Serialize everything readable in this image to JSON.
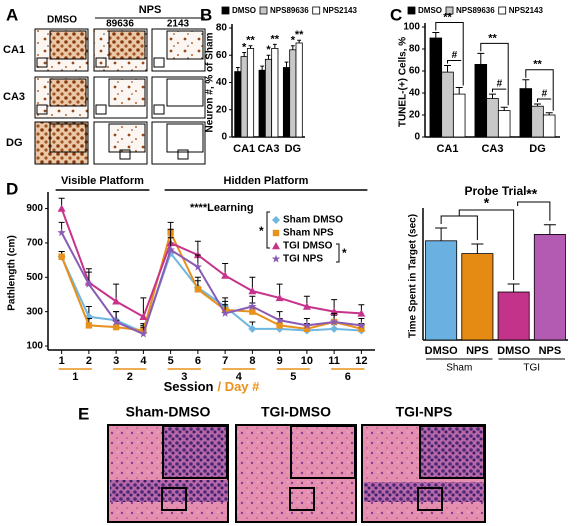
{
  "figure": {
    "panel_labels": [
      "A",
      "B",
      "C",
      "D",
      "E"
    ],
    "panel_a": {
      "columns": [
        "DMSO",
        "89636",
        "2143"
      ],
      "group": "NPS",
      "rows": [
        "CA1",
        "CA3",
        "DG"
      ]
    },
    "panel_e": {
      "labels": [
        "Sham-DMSO",
        "TGI-DMSO",
        "TGI-NPS"
      ]
    }
  },
  "chart_data": [
    {
      "type": "bar",
      "y_label": "Neuron #, % of Sham",
      "categories": [
        "CA1",
        "CA3",
        "DG"
      ],
      "series": [
        {
          "name": "DMSO",
          "color": "#000000",
          "values": [
            48,
            49,
            51
          ],
          "errors": [
            3,
            3,
            4
          ],
          "annotations": [
            null,
            null,
            null
          ]
        },
        {
          "name": "NPS89636",
          "color": "#c8c8c8",
          "values": [
            59,
            57,
            64
          ],
          "errors": [
            3,
            3,
            3
          ],
          "annotations": [
            "*",
            "*",
            "*"
          ]
        },
        {
          "name": "NPS2143",
          "color": "#ffffff",
          "values": [
            65,
            65,
            69
          ],
          "errors": [
            2,
            3,
            2
          ],
          "annotations": [
            "**",
            "**",
            "**"
          ]
        }
      ],
      "ylim": [
        0,
        80
      ],
      "yticks": [
        0,
        20,
        40,
        60,
        80
      ]
    },
    {
      "type": "bar",
      "y_label": "TUNEL-(+) Cells, %",
      "categories": [
        "CA1",
        "CA3",
        "DG"
      ],
      "series": [
        {
          "name": "DMSO",
          "color": "#000000",
          "values": [
            90,
            66,
            44
          ],
          "errors": [
            5,
            10,
            8
          ]
        },
        {
          "name": "NPS89636",
          "color": "#c8c8c8",
          "values": [
            59,
            35,
            28
          ],
          "errors": [
            6,
            4,
            2
          ]
        },
        {
          "name": "NPS2143",
          "color": "#ffffff",
          "values": [
            39,
            24,
            20
          ],
          "errors": [
            6,
            3,
            2
          ]
        }
      ],
      "significance": [
        [
          "**",
          "#"
        ],
        [
          "**",
          "#"
        ],
        [
          "**",
          "#"
        ]
      ],
      "ylim": [
        0,
        100
      ],
      "yticks": [
        0,
        20,
        40,
        60,
        80,
        100
      ]
    },
    {
      "type": "line",
      "y_label": "Pathlength (cm)",
      "x_label": "Session",
      "x_label_secondary": "/ Day #",
      "phases": [
        "Visible Platform",
        "Hidden Platform"
      ],
      "day_labels": [
        "1",
        "2",
        "3",
        "4",
        "5",
        "6"
      ],
      "annotations": [
        "****Learning",
        "*",
        "*"
      ],
      "x": [
        1,
        2,
        3,
        4,
        5,
        6,
        7,
        8,
        9,
        10,
        11,
        12
      ],
      "series": [
        {
          "name": "Sham DMSO",
          "color": "#6fb7e0",
          "marker": "diamond",
          "values": [
            620,
            270,
            250,
            180,
            640,
            440,
            330,
            200,
            200,
            190,
            200,
            190
          ],
          "errors": [
            30,
            60,
            50,
            40,
            60,
            60,
            50,
            40,
            30,
            30,
            40,
            30
          ]
        },
        {
          "name": "Sham NPS",
          "color": "#e8911c",
          "marker": "square",
          "values": [
            620,
            220,
            210,
            190,
            760,
            430,
            310,
            300,
            220,
            200,
            240,
            200
          ],
          "errors": [
            30,
            40,
            40,
            40,
            60,
            50,
            50,
            50,
            40,
            30,
            40,
            30
          ]
        },
        {
          "name": "TGI DMSO",
          "color": "#c7338a",
          "marker": "triangle",
          "values": [
            900,
            470,
            360,
            270,
            700,
            630,
            510,
            420,
            380,
            330,
            300,
            290
          ],
          "errors": [
            60,
            80,
            100,
            110,
            80,
            80,
            70,
            80,
            80,
            60,
            70,
            50
          ]
        },
        {
          "name": "TGI NPS",
          "color": "#8a5bb5",
          "marker": "star",
          "values": [
            760,
            460,
            240,
            170,
            660,
            560,
            290,
            330,
            250,
            220,
            240,
            220
          ],
          "errors": [
            60,
            70,
            60,
            40,
            70,
            70,
            50,
            60,
            50,
            40,
            50,
            40
          ]
        }
      ],
      "xlim": [
        0.5,
        12.5
      ],
      "ylim": [
        100,
        950
      ],
      "yticks": [
        100,
        300,
        500,
        700,
        900
      ]
    },
    {
      "type": "bar",
      "title": "Probe Trial",
      "y_label": "Time Spent in Target (sec)",
      "categories": [
        "DMSO",
        "NPS",
        "DMSO",
        "NPS"
      ],
      "groups": [
        "Sham",
        "TGI"
      ],
      "values": [
        6.2,
        5.4,
        3.0,
        6.6
      ],
      "errors": [
        0.8,
        0.6,
        0.5,
        0.6
      ],
      "colors": [
        "#6ab0e0",
        "#e58a13",
        "#c4338a",
        "#b35bb3"
      ],
      "significance": [
        "*",
        "**"
      ],
      "ylim": [
        0,
        8
      ]
    }
  ]
}
